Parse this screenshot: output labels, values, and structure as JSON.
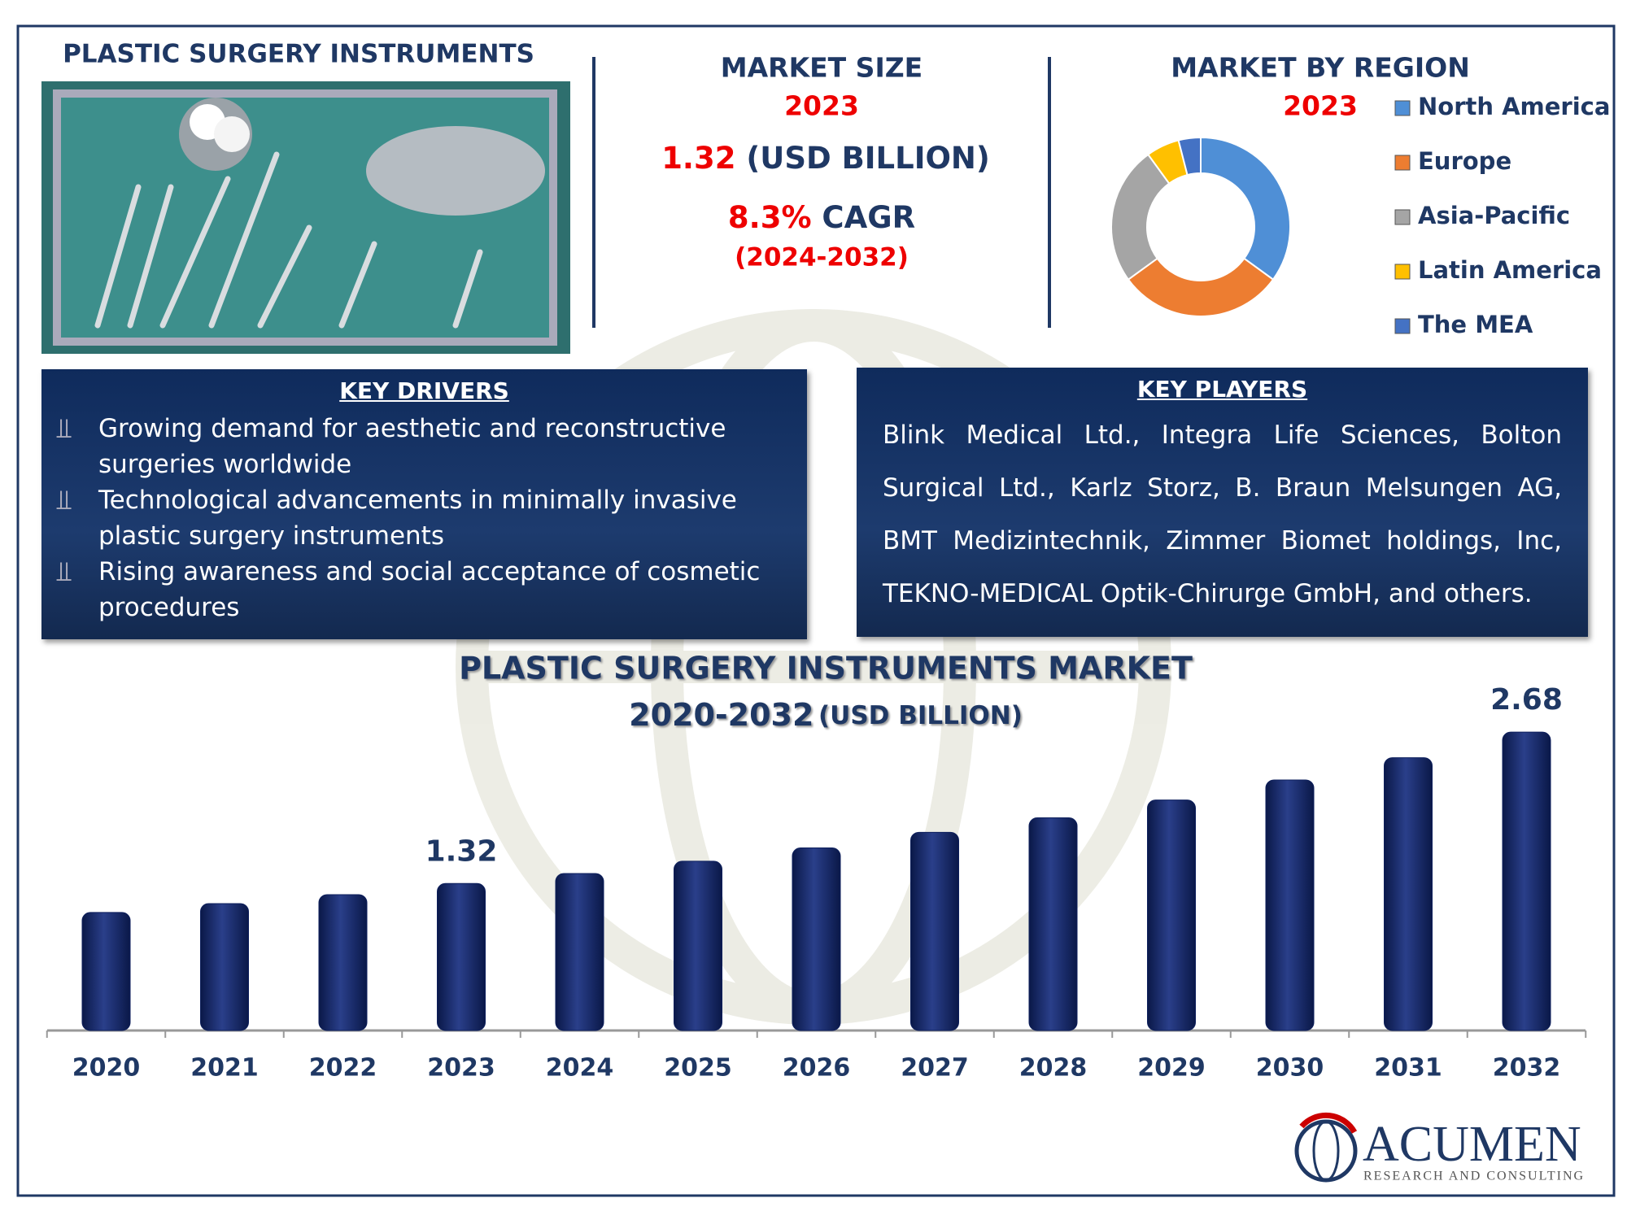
{
  "header": {
    "title": "PLASTIC SURGERY INSTRUMENTS"
  },
  "market_size": {
    "title": "MARKET SIZE",
    "year": "2023",
    "value": "1.32",
    "unit": "(USD BILLION)",
    "cagr": "8.3%",
    "cagr_label": "CAGR",
    "period": "(2024-2032)"
  },
  "key_drivers": {
    "title": "KEY DRIVERS",
    "items": [
      "Growing demand for aesthetic and reconstructive surgeries worldwide",
      "Technological advancements in minimally invasive plastic surgery instruments",
      "Rising awareness and social acceptance of cosmetic procedures"
    ]
  },
  "key_players": {
    "title": "KEY PLAYERS",
    "text": "Blink Medical Ltd., Integra Life Sciences, Bolton Surgical Ltd., Karlz Storz, B. Braun Melsungen AG, BMT Medizintechnik, Zimmer Biomet holdings, Inc, TEKNO-MEDICAL Optik-Chirurge GmbH, and others."
  },
  "logo": {
    "name": "ACUMEN",
    "tagline": "RESEARCH AND CONSULTING"
  },
  "chart_data": [
    {
      "type": "pie",
      "title": "MARKET BY REGION",
      "subtitle": "2023",
      "donut": true,
      "categories": [
        "North America",
        "Europe",
        "Asia-Pacific",
        "Latin America",
        "The MEA"
      ],
      "values": [
        35,
        30,
        25,
        6,
        4
      ],
      "colors": [
        "#4f8fd6",
        "#ed7d31",
        "#a5a5a5",
        "#ffc000",
        "#4472c4"
      ]
    },
    {
      "type": "bar",
      "title": "PLASTIC SURGERY INSTRUMENTS MARKET",
      "subtitle": "2020-2032",
      "unit": "(USD BILLION)",
      "categories": [
        "2020",
        "2021",
        "2022",
        "2023",
        "2024",
        "2025",
        "2026",
        "2027",
        "2028",
        "2029",
        "2030",
        "2031",
        "2032"
      ],
      "values": [
        1.06,
        1.14,
        1.22,
        1.32,
        1.41,
        1.52,
        1.64,
        1.78,
        1.91,
        2.07,
        2.25,
        2.45,
        2.68
      ],
      "value_labels": [
        null,
        null,
        null,
        "1.32",
        null,
        null,
        null,
        null,
        null,
        null,
        null,
        null,
        "2.68"
      ],
      "color": "#0d1f5c",
      "ylim": [
        0,
        2.9
      ]
    }
  ]
}
